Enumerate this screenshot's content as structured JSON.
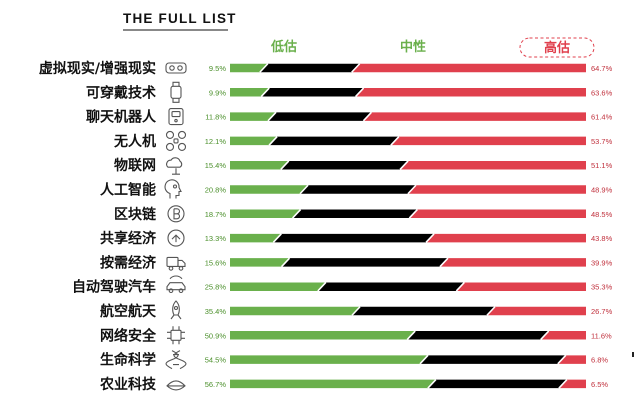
{
  "chart_data": {
    "type": "bar",
    "stacked": true,
    "orientation": "horizontal",
    "title": "THE FULL LIST",
    "categories": [
      "虚拟现实/增强现实",
      "可穿戴技术",
      "聊天机器人",
      "无人机",
      "物联网",
      "人工智能",
      "区块链",
      "共享经济",
      "按需经济",
      "自动驾驶汽车",
      "航空航天",
      "网络安全",
      "生命科学",
      "农业科技"
    ],
    "series": [
      {
        "name": "低估",
        "color": "#6ab04c",
        "values": [
          9.5,
          9.9,
          11.8,
          12.1,
          15.4,
          20.8,
          18.7,
          13.3,
          15.6,
          25.8,
          35.4,
          50.9,
          54.5,
          56.7
        ]
      },
      {
        "name": "中性",
        "color": "#000000",
        "values": [
          25.8,
          26.5,
          26.8,
          34.2,
          33.5,
          30.3,
          32.8,
          42.9,
          44.5,
          38.9,
          37.9,
          37.5,
          38.7,
          36.8
        ]
      },
      {
        "name": "高估",
        "color": "#e0404d",
        "values": [
          64.7,
          63.6,
          61.4,
          53.7,
          51.1,
          48.9,
          48.5,
          43.8,
          39.9,
          35.3,
          26.7,
          11.6,
          6.8,
          6.5
        ]
      }
    ],
    "low_labels": [
      "9.5%",
      "9.9%",
      "11.8%",
      "12.1%",
      "15.4%",
      "20.8%",
      "18.7%",
      "13.3%",
      "15.6%",
      "25.8%",
      "35.4%",
      "50.9%",
      "54.5%",
      "56.7%"
    ],
    "high_labels": [
      "64.7%",
      "63.6%",
      "61.4%",
      "53.7%",
      "51.1%",
      "48.9%",
      "48.5%",
      "43.8%",
      "39.9%",
      "35.3%",
      "26.7%",
      "11.6%",
      "6.8%",
      "6.5%"
    ],
    "xlim": [
      0,
      100
    ],
    "legend_placement": "top",
    "grid": false,
    "icons": [
      "vr-headset-icon",
      "smartwatch-icon",
      "chatbot-icon",
      "drone-icon",
      "iot-cloud-icon",
      "ai-head-icon",
      "blockchain-icon",
      "sharing-economy-icon",
      "on-demand-truck-icon",
      "self-driving-car-icon",
      "rocket-icon",
      "cybersecurity-chip-icon",
      "dna-icon",
      "agriculture-icon"
    ]
  },
  "colors": {
    "low": "#6ab04c",
    "neutral": "#000000",
    "high": "#e0404d",
    "low_label": "#4a8f2a",
    "high_label": "#c0303c",
    "icon": "#555555"
  }
}
